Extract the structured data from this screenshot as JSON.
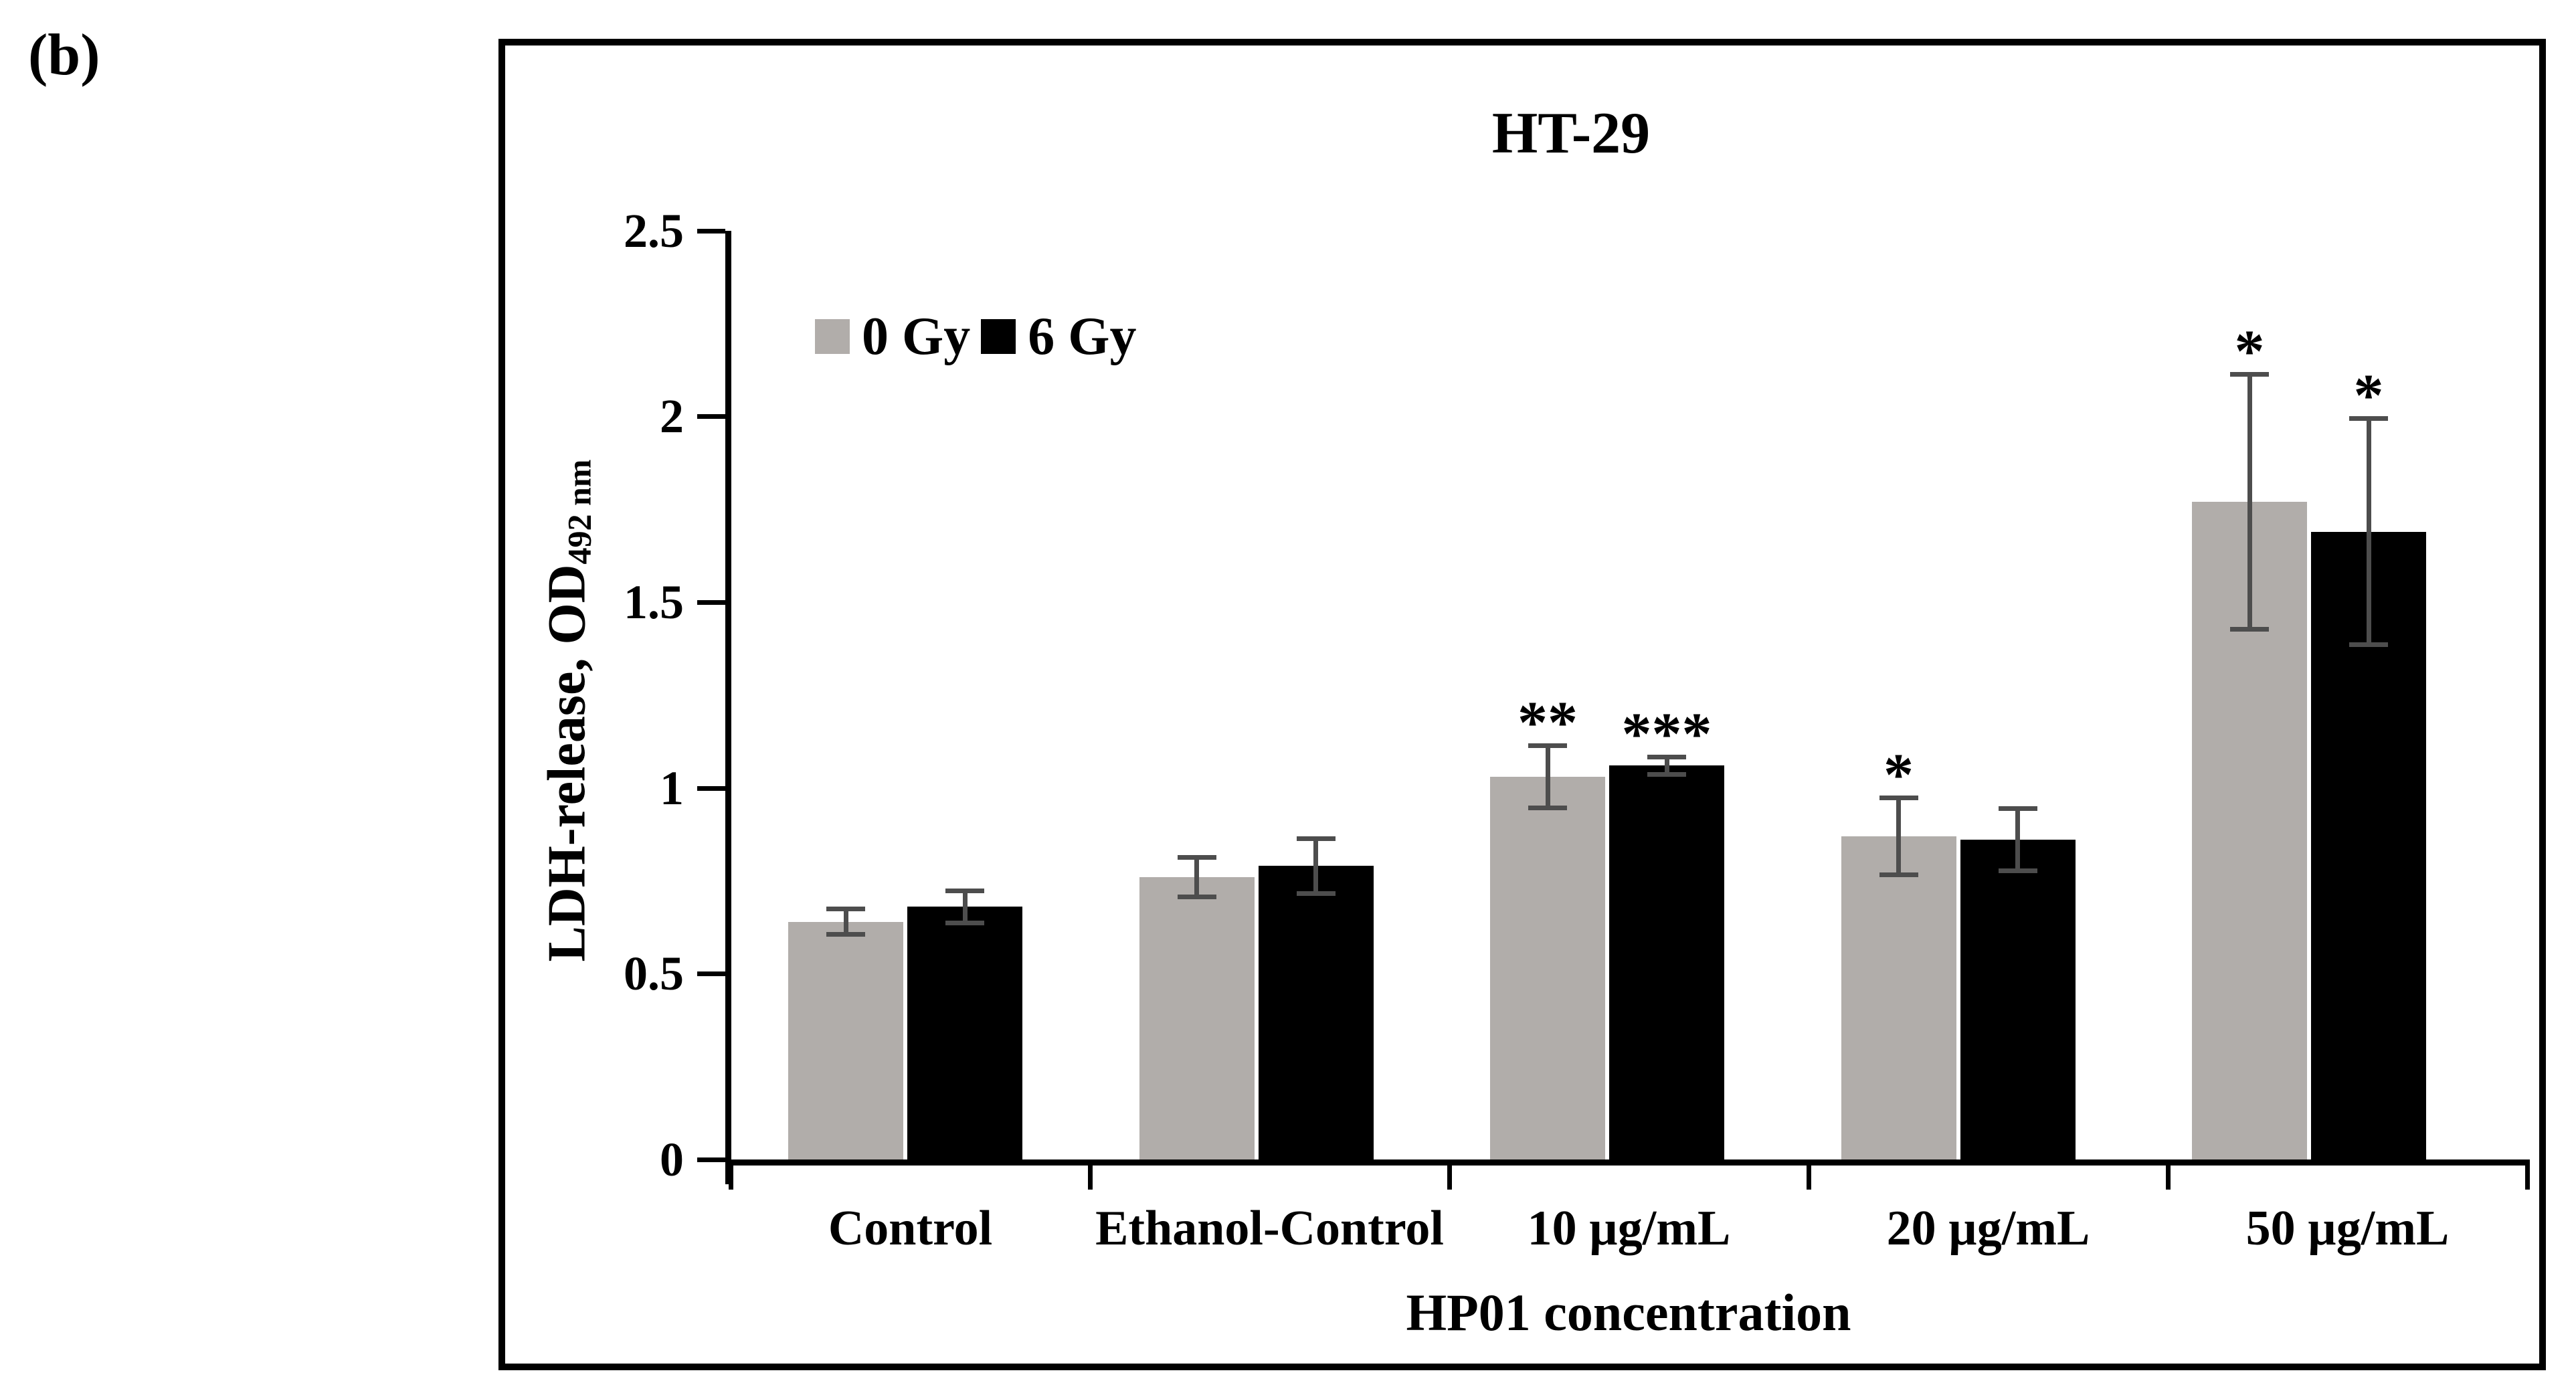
{
  "panel_label": "(b)",
  "title": "HT-29",
  "legend": {
    "items": [
      {
        "label": "0 Gy",
        "color": "#b1adaa"
      },
      {
        "label": "6 Gy",
        "color": "#000000"
      }
    ]
  },
  "y_axis": {
    "title_main": "LDH-release, OD",
    "title_sub": "492 nm",
    "ticks": [
      "0",
      "0.5",
      "1",
      "1.5",
      "2",
      "2.5"
    ],
    "min": 0,
    "max": 2.5
  },
  "x_axis": {
    "title": "HP01 concentration"
  },
  "chart_data": {
    "type": "bar",
    "title": "HT-29",
    "categories": [
      "Control",
      "Ethanol-Control",
      "10 µg/mL",
      "20 µg/mL",
      "50 µg/mL"
    ],
    "series": [
      {
        "name": "0 Gy",
        "color": "#b1adaa",
        "values": [
          0.64,
          0.76,
          1.03,
          0.87,
          1.77
        ],
        "errors": [
          0.04,
          0.06,
          0.09,
          0.11,
          0.35
        ],
        "significance": [
          "",
          "",
          "**",
          "*",
          "*"
        ]
      },
      {
        "name": "6 Gy",
        "color": "#000000",
        "values": [
          0.68,
          0.79,
          1.06,
          0.86,
          1.69
        ],
        "errors": [
          0.05,
          0.08,
          0.03,
          0.09,
          0.31
        ],
        "significance": [
          "",
          "",
          "***",
          "",
          "*"
        ]
      }
    ],
    "xlabel": "HP01 concentration",
    "ylabel": "LDH-release, OD 492 nm",
    "ylim": [
      0,
      2.5
    ],
    "ytick_step": 0.5,
    "grid": false,
    "legend_position": "top-left-inside",
    "error_bar_color": "#4d4d4d",
    "frame_color": "#000000"
  }
}
